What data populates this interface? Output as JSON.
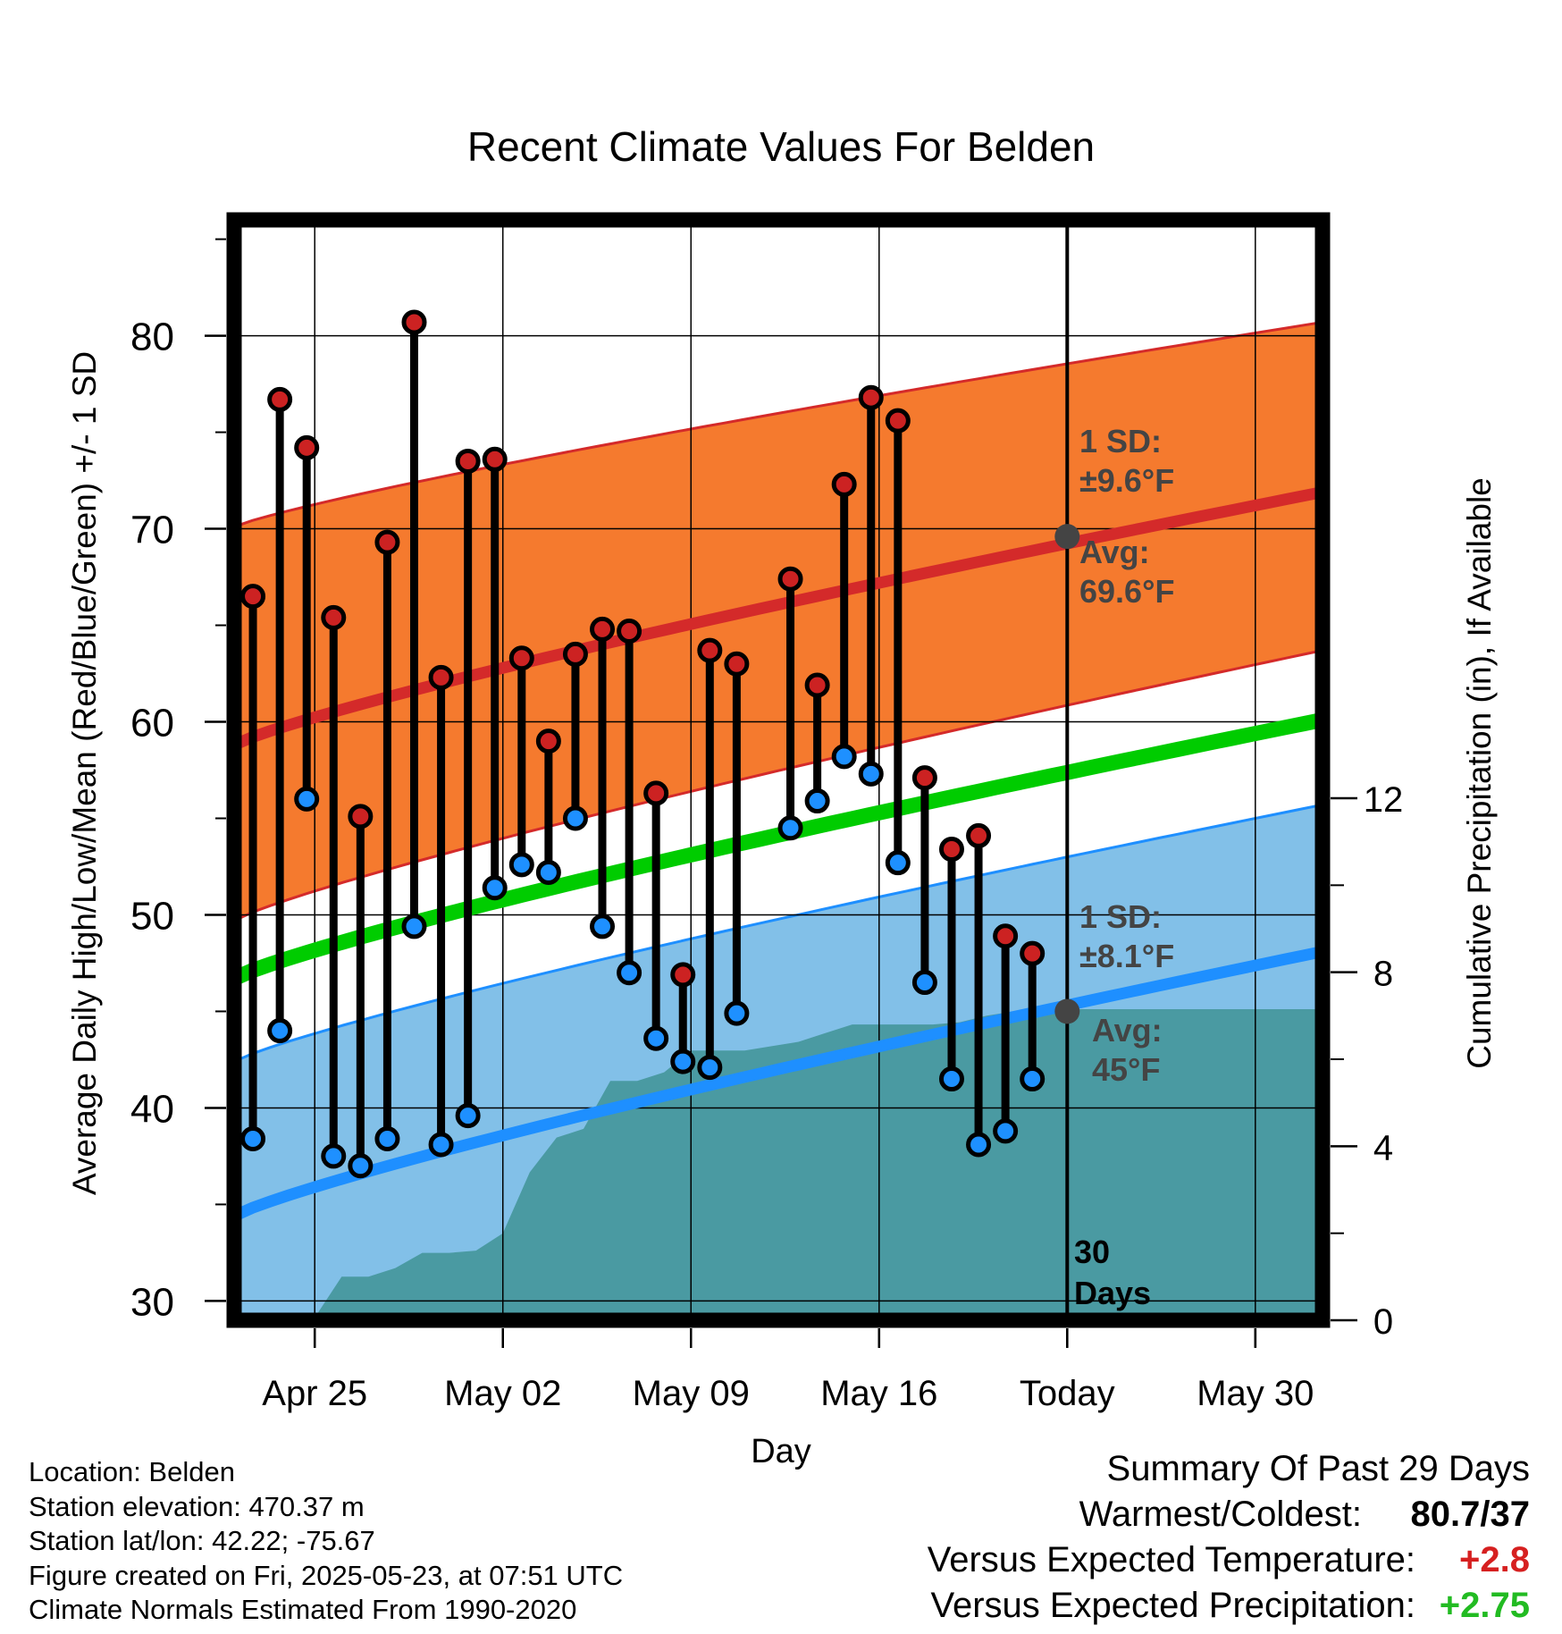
{
  "chart_data": {
    "type": "line",
    "title": "Recent Climate Values For Belden",
    "xlabel": "Day",
    "ylabel": "Average Daily High/Low/Mean (Red/Blue/Green) +/- 1 SD",
    "y2label": "Cumulative Precipitation (in), If Available",
    "ylim": [
      29,
      86
    ],
    "y2lim": [
      0,
      12
    ],
    "xlim_days_from_apr22": [
      0,
      40.5
    ],
    "y_ticks": [
      30,
      40,
      50,
      60,
      70,
      80
    ],
    "y2_ticks": [
      0,
      4,
      8,
      12
    ],
    "x_tick_labels": [
      "Apr 25",
      "May 02",
      "May 09",
      "May 16",
      "Today",
      "May 30"
    ],
    "grid": true,
    "today_label": "30\nDays",
    "normals": {
      "avg_high": {
        "start": 58.8,
        "end": 71.9,
        "color": "#d42a2a"
      },
      "high_sd_upper": {
        "start": 70.1,
        "end": 80.7
      },
      "high_sd_lower": {
        "start": 49.7,
        "end": 63.7
      },
      "avg_mean": {
        "start": 46.7,
        "end": 60.1,
        "color": "#00cc00"
      },
      "avg_low": {
        "start": 34.4,
        "end": 48.1,
        "color": "#1e8fff"
      },
      "low_sd_upper": {
        "start": 42.4,
        "end": 55.7
      },
      "low_sd_lower": {
        "start": 29,
        "end": 29
      }
    },
    "annotations": {
      "high_sd": "1 SD:\n±9.6°F",
      "high_avg": "Avg:\n69.6°F",
      "low_sd": "1 SD:\n±8.1°F",
      "low_avg": "Avg:\n45°F",
      "today_high_avg": 69.6,
      "today_low_avg": 45
    },
    "series": [
      {
        "name": "High",
        "color": "#cc2222",
        "values": [
          66.5,
          76.7,
          74.2,
          65.4,
          55.1,
          69.3,
          80.7,
          62.3,
          73.5,
          73.6,
          63.3,
          59.0,
          63.5,
          64.8,
          64.7,
          56.3,
          46.9,
          63.7,
          63.0,
          null,
          67.4,
          61.9,
          72.3,
          76.8,
          75.6,
          57.1,
          53.4,
          54.1,
          48.9,
          48.0
        ]
      },
      {
        "name": "Low",
        "color": "#1e90ff",
        "values": [
          38.4,
          44.0,
          56.0,
          37.5,
          37.0,
          38.4,
          49.4,
          38.1,
          39.6,
          51.4,
          52.6,
          52.2,
          55.0,
          49.4,
          47.0,
          43.6,
          42.4,
          42.1,
          44.9,
          null,
          54.5,
          55.9,
          58.2,
          57.3,
          52.7,
          46.5,
          41.5,
          38.1,
          38.8,
          41.5
        ]
      }
    ],
    "precip": {
      "color": "#4a9aa2",
      "values": [
        0,
        0,
        0,
        0.06,
        1.0,
        1.0,
        1.2,
        1.55,
        1.55,
        1.6,
        2.0,
        3.4,
        4.2,
        4.4,
        5.5,
        5.5,
        5.7,
        6.2,
        6.2,
        6.2,
        6.3,
        6.4,
        6.6,
        6.8,
        6.8,
        6.8,
        6.8,
        6.85,
        7.0,
        7.1,
        7.15,
        7.15,
        7.15,
        7.15,
        7.15,
        7.15,
        7.15,
        7.15,
        7.15,
        7.15,
        7.15
      ]
    }
  },
  "footer": {
    "location": "Location: Belden",
    "elevation": "Station elevation: 470.37 m",
    "latlon": "Station lat/lon: 42.22; -75.67",
    "created": "Figure created on Fri, 2025-05-23, at 07:51 UTC",
    "normals": "Climate Normals Estimated From 1990-2020"
  },
  "summary": {
    "title": "Summary Of Past 29 Days",
    "warm_cold_label": "Warmest/Coldest:",
    "warm_cold_value": "80.7/37",
    "temp_label": "Versus Expected Temperature:",
    "temp_value": "+2.8",
    "temp_color": "#d62020",
    "precip_label": "Versus Expected Precipitation:",
    "precip_value": "+2.75",
    "precip_color": "#22bb22"
  }
}
